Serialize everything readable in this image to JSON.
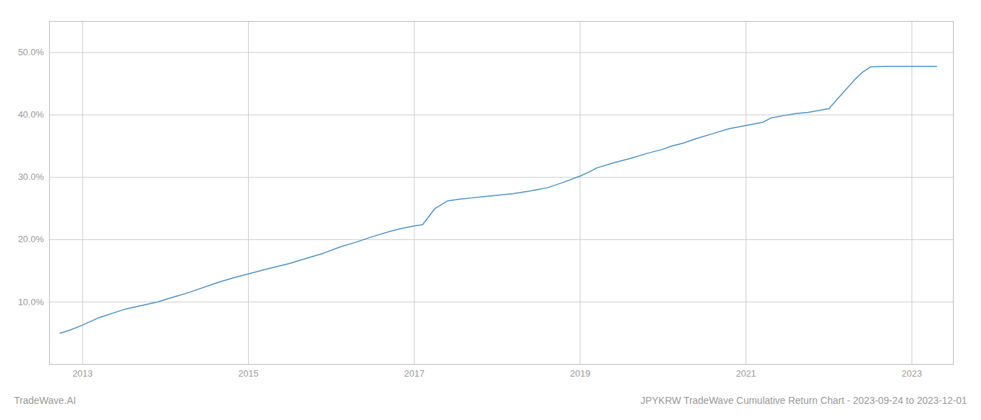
{
  "chart_data": {
    "type": "line",
    "annotations": [
      "TradeWave.AI",
      "JPYKRW TradeWave Cumulative Return Chart - 2023-09-24 to 2023-12-01"
    ],
    "color": "#4a90c4",
    "grid": true,
    "xlim": [
      2012.6,
      2023.5
    ],
    "xticks": [
      2013,
      2015,
      2017,
      2019,
      2021,
      2023
    ],
    "ylim": [
      0.0,
      0.55
    ],
    "yticks": [
      {
        "value": 0.1,
        "label": "10.0%"
      },
      {
        "value": 0.2,
        "label": "20.0%"
      },
      {
        "value": 0.3,
        "label": "30.0%"
      },
      {
        "value": 0.4,
        "label": "40.0%"
      },
      {
        "value": 0.5,
        "label": "50.0%"
      }
    ],
    "x": [
      2012.73,
      2012.85,
      2013.0,
      2013.2,
      2013.5,
      2013.7,
      2013.9,
      2014.1,
      2014.3,
      2014.6,
      2014.8,
      2015.0,
      2015.2,
      2015.5,
      2015.7,
      2015.9,
      2016.1,
      2016.3,
      2016.5,
      2016.7,
      2016.85,
      2017.0,
      2017.1,
      2017.25,
      2017.4,
      2017.55,
      2017.7,
      2017.85,
      2018.0,
      2018.2,
      2018.4,
      2018.6,
      2018.8,
      2019.0,
      2019.1,
      2019.2,
      2019.4,
      2019.6,
      2019.8,
      2020.0,
      2020.1,
      2020.25,
      2020.4,
      2020.6,
      2020.8,
      2021.0,
      2021.2,
      2021.3,
      2021.5,
      2021.6,
      2021.75,
      2022.0,
      2022.1,
      2022.2,
      2022.3,
      2022.4,
      2022.5,
      2022.7,
      2023.0,
      2023.1,
      2023.3
    ],
    "values": [
      0.05,
      0.055,
      0.063,
      0.075,
      0.088,
      0.094,
      0.1,
      0.108,
      0.116,
      0.13,
      0.138,
      0.145,
      0.152,
      0.162,
      0.17,
      0.178,
      0.188,
      0.196,
      0.205,
      0.213,
      0.218,
      0.222,
      0.224,
      0.25,
      0.262,
      0.265,
      0.267,
      0.269,
      0.271,
      0.274,
      0.278,
      0.283,
      0.292,
      0.302,
      0.308,
      0.315,
      0.323,
      0.33,
      0.338,
      0.345,
      0.35,
      0.355,
      0.362,
      0.37,
      0.378,
      0.383,
      0.388,
      0.395,
      0.4,
      0.402,
      0.404,
      0.41,
      0.425,
      0.44,
      0.455,
      0.468,
      0.477,
      0.478,
      0.478,
      0.478,
      0.478
    ]
  }
}
